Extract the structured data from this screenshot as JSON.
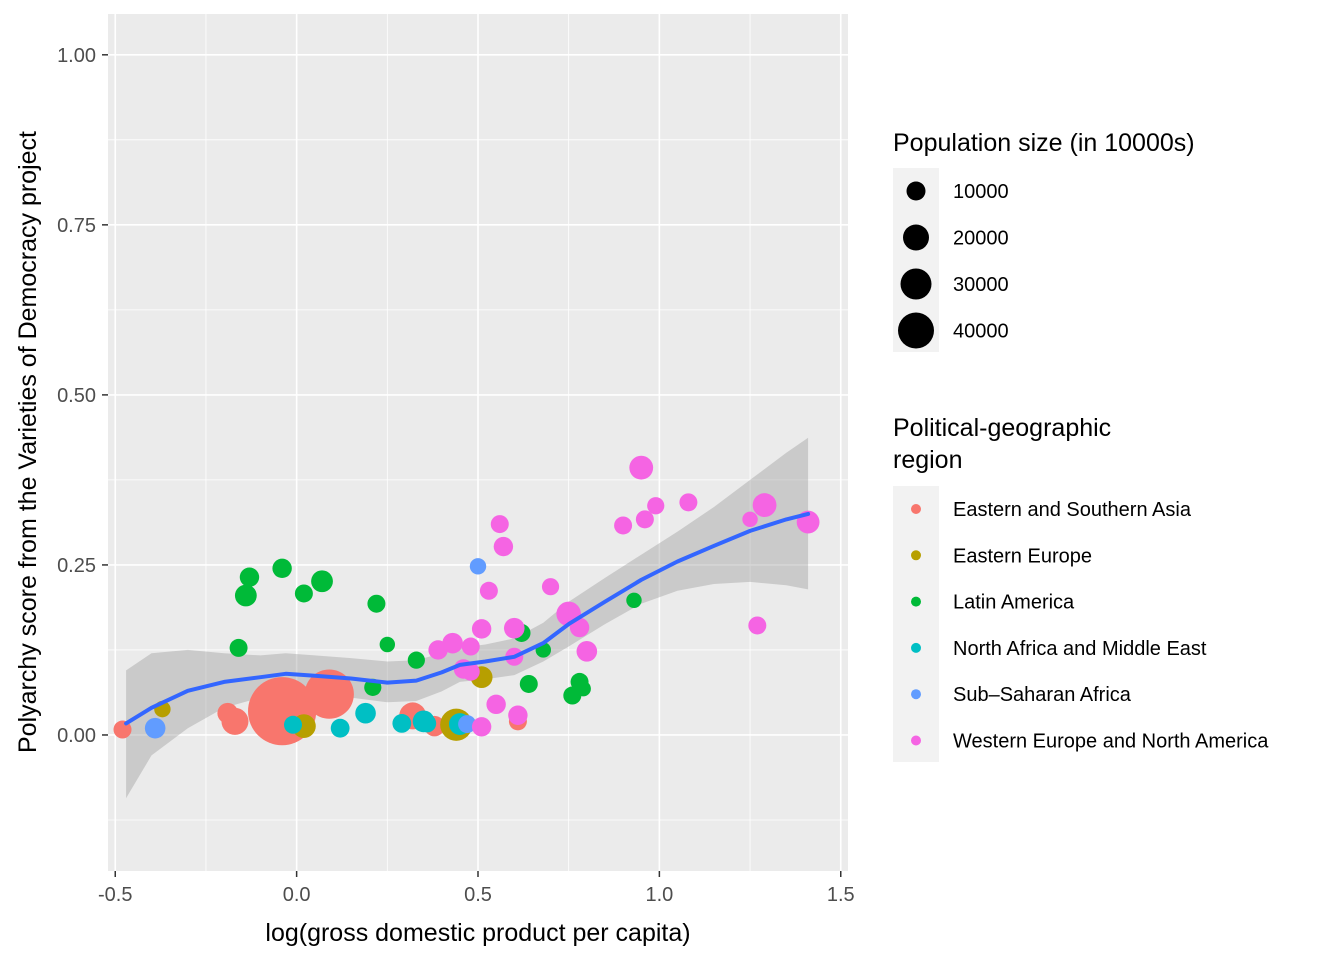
{
  "chart_data": {
    "type": "scatter",
    "xlabel": "log(gross domestic product per capita)",
    "ylabel": "Polyarchy score from the Varieties of Democracy project",
    "xlim": [
      -0.52,
      1.52
    ],
    "ylim": [
      -0.2,
      1.06
    ],
    "x_ticks": [
      {
        "value": -0.5,
        "label": "-0.5"
      },
      {
        "value": 0.0,
        "label": "0.0"
      },
      {
        "value": 0.5,
        "label": "0.5"
      },
      {
        "value": 1.0,
        "label": "1.0"
      },
      {
        "value": 1.5,
        "label": "1.5"
      }
    ],
    "y_ticks": [
      {
        "value": 0.0,
        "label": "0.00"
      },
      {
        "value": 0.25,
        "label": "0.25"
      },
      {
        "value": 0.5,
        "label": "0.50"
      },
      {
        "value": 0.75,
        "label": "0.75"
      },
      {
        "value": 1.0,
        "label": "1.00"
      }
    ],
    "grid": true,
    "legend_position": "right",
    "size_legend": {
      "title": "Population size (in 10000s)",
      "entries": [
        {
          "label": "10000",
          "value": 10000
        },
        {
          "label": "20000",
          "value": 20000
        },
        {
          "label": "30000",
          "value": 30000
        },
        {
          "label": "40000",
          "value": 40000
        }
      ]
    },
    "color_legend": {
      "title_lines": [
        "Political-geographic",
        "region"
      ],
      "entries": [
        {
          "label": "Eastern and Southern Asia",
          "color": "#F8766D"
        },
        {
          "label": "Eastern Europe",
          "color": "#B79F00"
        },
        {
          "label": "Latin America",
          "color": "#00BA38"
        },
        {
          "label": "North Africa and Middle East",
          "color": "#00BFC4"
        },
        {
          "label": "Sub–Saharan Africa",
          "color": "#619CFF"
        },
        {
          "label": "Western Europe and North America",
          "color": "#F564E3"
        }
      ]
    },
    "smooth": {
      "color": "#3366FF",
      "points": [
        [
          -0.47,
          0.017,
          0.095,
          -0.093
        ],
        [
          -0.4,
          0.04,
          0.12,
          -0.03
        ],
        [
          -0.3,
          0.065,
          0.125,
          0.01
        ],
        [
          -0.2,
          0.078,
          0.12,
          0.04
        ],
        [
          -0.1,
          0.085,
          0.117,
          0.055
        ],
        [
          -0.03,
          0.09,
          0.12,
          0.06
        ],
        [
          0.05,
          0.087,
          0.117,
          0.058
        ],
        [
          0.15,
          0.083,
          0.113,
          0.055
        ],
        [
          0.25,
          0.077,
          0.108,
          0.048
        ],
        [
          0.33,
          0.08,
          0.11,
          0.05
        ],
        [
          0.4,
          0.092,
          0.12,
          0.064
        ],
        [
          0.45,
          0.103,
          0.128,
          0.078
        ],
        [
          0.52,
          0.108,
          0.133,
          0.082
        ],
        [
          0.6,
          0.115,
          0.142,
          0.088
        ],
        [
          0.68,
          0.135,
          0.165,
          0.108
        ],
        [
          0.75,
          0.163,
          0.196,
          0.13
        ],
        [
          0.85,
          0.196,
          0.231,
          0.163
        ],
        [
          0.95,
          0.228,
          0.265,
          0.193
        ],
        [
          1.05,
          0.255,
          0.299,
          0.212
        ],
        [
          1.15,
          0.278,
          0.335,
          0.222
        ],
        [
          1.25,
          0.3,
          0.375,
          0.225
        ],
        [
          1.35,
          0.317,
          0.415,
          0.22
        ],
        [
          1.41,
          0.325,
          0.437,
          0.214
        ]
      ]
    },
    "points": [
      {
        "x": -0.04,
        "y": 0.035,
        "pop": 130000,
        "region": 0
      },
      {
        "x": 0.09,
        "y": 0.06,
        "pop": 60000,
        "region": 0
      },
      {
        "x": -0.17,
        "y": 0.02,
        "pop": 12000,
        "region": 0
      },
      {
        "x": -0.19,
        "y": 0.032,
        "pop": 5000,
        "region": 0
      },
      {
        "x": -0.48,
        "y": 0.008,
        "pop": 3000,
        "region": 0
      },
      {
        "x": 0.32,
        "y": 0.028,
        "pop": 12000,
        "region": 0
      },
      {
        "x": 0.38,
        "y": 0.013,
        "pop": 5000,
        "region": 0
      },
      {
        "x": 0.61,
        "y": 0.02,
        "pop": 3000,
        "region": 0
      },
      {
        "x": 0.44,
        "y": 0.015,
        "pop": 20000,
        "region": 1
      },
      {
        "x": 0.02,
        "y": 0.013,
        "pop": 8000,
        "region": 1
      },
      {
        "x": 0.51,
        "y": 0.085,
        "pop": 6000,
        "region": 1
      },
      {
        "x": -0.37,
        "y": 0.038,
        "pop": 2000,
        "region": 1
      },
      {
        "x": -0.14,
        "y": 0.205,
        "pop": 6000,
        "region": 2
      },
      {
        "x": -0.13,
        "y": 0.232,
        "pop": 4000,
        "region": 2
      },
      {
        "x": -0.04,
        "y": 0.245,
        "pop": 4000,
        "region": 2
      },
      {
        "x": 0.02,
        "y": 0.208,
        "pop": 3000,
        "region": 2
      },
      {
        "x": 0.07,
        "y": 0.226,
        "pop": 6000,
        "region": 2
      },
      {
        "x": -0.16,
        "y": 0.128,
        "pop": 3000,
        "region": 2
      },
      {
        "x": 0.22,
        "y": 0.193,
        "pop": 3000,
        "region": 2
      },
      {
        "x": 0.25,
        "y": 0.133,
        "pop": 1500,
        "region": 2
      },
      {
        "x": 0.33,
        "y": 0.11,
        "pop": 2500,
        "region": 2
      },
      {
        "x": 0.21,
        "y": 0.07,
        "pop": 2500,
        "region": 2
      },
      {
        "x": 0.62,
        "y": 0.15,
        "pop": 3000,
        "region": 2
      },
      {
        "x": 0.64,
        "y": 0.075,
        "pop": 3000,
        "region": 2
      },
      {
        "x": 0.68,
        "y": 0.125,
        "pop": 1500,
        "region": 2
      },
      {
        "x": 0.76,
        "y": 0.058,
        "pop": 3000,
        "region": 2
      },
      {
        "x": 0.78,
        "y": 0.078,
        "pop": 3000,
        "region": 2
      },
      {
        "x": 0.79,
        "y": 0.068,
        "pop": 1500,
        "region": 2
      },
      {
        "x": 0.93,
        "y": 0.198,
        "pop": 1500,
        "region": 2
      },
      {
        "x": 0.12,
        "y": 0.01,
        "pop": 3500,
        "region": 3
      },
      {
        "x": 0.19,
        "y": 0.032,
        "pop": 5000,
        "region": 3
      },
      {
        "x": 0.29,
        "y": 0.017,
        "pop": 3500,
        "region": 3
      },
      {
        "x": 0.35,
        "y": 0.02,
        "pop": 6000,
        "region": 3
      },
      {
        "x": 0.36,
        "y": 0.017,
        "pop": 3000,
        "region": 3
      },
      {
        "x": 0.45,
        "y": 0.016,
        "pop": 6000,
        "region": 3
      },
      {
        "x": -0.01,
        "y": 0.015,
        "pop": 3000,
        "region": 3
      },
      {
        "x": -0.39,
        "y": 0.01,
        "pop": 5000,
        "region": 4
      },
      {
        "x": 0.5,
        "y": 0.248,
        "pop": 2000,
        "region": 4
      },
      {
        "x": 0.47,
        "y": 0.016,
        "pop": 3000,
        "region": 4
      },
      {
        "x": 0.95,
        "y": 0.393,
        "pop": 8000,
        "region": 5
      },
      {
        "x": 0.99,
        "y": 0.337,
        "pop": 2500,
        "region": 5
      },
      {
        "x": 1.08,
        "y": 0.342,
        "pop": 3000,
        "region": 5
      },
      {
        "x": 1.29,
        "y": 0.338,
        "pop": 8000,
        "region": 5
      },
      {
        "x": 1.41,
        "y": 0.313,
        "pop": 7000,
        "region": 5
      },
      {
        "x": 0.9,
        "y": 0.308,
        "pop": 3000,
        "region": 5
      },
      {
        "x": 0.96,
        "y": 0.317,
        "pop": 3000,
        "region": 5
      },
      {
        "x": 1.25,
        "y": 0.317,
        "pop": 1500,
        "region": 5
      },
      {
        "x": 1.27,
        "y": 0.161,
        "pop": 3000,
        "region": 5
      },
      {
        "x": 0.56,
        "y": 0.31,
        "pop": 3000,
        "region": 5
      },
      {
        "x": 0.57,
        "y": 0.277,
        "pop": 4000,
        "region": 5
      },
      {
        "x": 0.53,
        "y": 0.212,
        "pop": 3000,
        "region": 5
      },
      {
        "x": 0.7,
        "y": 0.218,
        "pop": 2500,
        "region": 5
      },
      {
        "x": 0.75,
        "y": 0.178,
        "pop": 9000,
        "region": 5
      },
      {
        "x": 0.78,
        "y": 0.158,
        "pop": 4000,
        "region": 5
      },
      {
        "x": 0.8,
        "y": 0.123,
        "pop": 5000,
        "region": 5
      },
      {
        "x": 0.6,
        "y": 0.157,
        "pop": 5000,
        "region": 5
      },
      {
        "x": 0.51,
        "y": 0.156,
        "pop": 4000,
        "region": 5
      },
      {
        "x": 0.6,
        "y": 0.115,
        "pop": 3000,
        "region": 5
      },
      {
        "x": 0.39,
        "y": 0.125,
        "pop": 4000,
        "region": 5
      },
      {
        "x": 0.43,
        "y": 0.135,
        "pop": 5000,
        "region": 5
      },
      {
        "x": 0.48,
        "y": 0.13,
        "pop": 3000,
        "region": 5
      },
      {
        "x": 0.46,
        "y": 0.097,
        "pop": 4000,
        "region": 5
      },
      {
        "x": 0.48,
        "y": 0.093,
        "pop": 3000,
        "region": 5
      },
      {
        "x": 0.55,
        "y": 0.045,
        "pop": 4000,
        "region": 5
      },
      {
        "x": 0.61,
        "y": 0.029,
        "pop": 4000,
        "region": 5
      },
      {
        "x": 0.51,
        "y": 0.012,
        "pop": 4000,
        "region": 5
      }
    ]
  }
}
